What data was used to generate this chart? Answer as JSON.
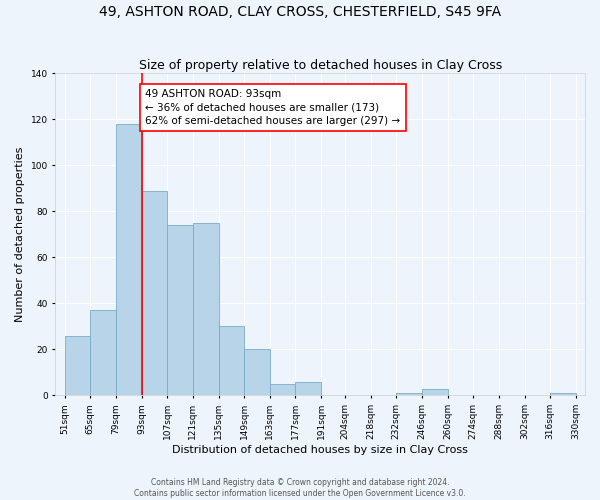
{
  "title": "49, ASHTON ROAD, CLAY CROSS, CHESTERFIELD, S45 9FA",
  "subtitle": "Size of property relative to detached houses in Clay Cross",
  "xlabel": "Distribution of detached houses by size in Clay Cross",
  "ylabel": "Number of detached properties",
  "footer_line1": "Contains HM Land Registry data © Crown copyright and database right 2024.",
  "footer_line2": "Contains public sector information licensed under the Open Government Licence v3.0.",
  "bar_color": "#b8d4e8",
  "bar_edgecolor": "#7aacc8",
  "background_color": "#eef4fb",
  "plot_bg_color": "#eef4fb",
  "grid_color": "#ffffff",
  "red_line_x": 93,
  "annotation_text": "49 ASHTON ROAD: 93sqm\n← 36% of detached houses are smaller (173)\n62% of semi-detached houses are larger (297) →",
  "bin_edges": [
    51,
    65,
    79,
    93,
    107,
    121,
    135,
    149,
    163,
    177,
    191,
    204,
    218,
    232,
    246,
    260,
    274,
    288,
    302,
    316,
    330
  ],
  "bar_heights": [
    26,
    37,
    118,
    89,
    74,
    75,
    30,
    20,
    5,
    6,
    0,
    0,
    0,
    1,
    3,
    0,
    0,
    0,
    0,
    1
  ],
  "ylim": [
    0,
    140
  ],
  "yticks": [
    0,
    20,
    40,
    60,
    80,
    100,
    120,
    140
  ],
  "title_fontsize": 10,
  "subtitle_fontsize": 9,
  "axis_label_fontsize": 8,
  "tick_fontsize": 6.5,
  "annotation_fontsize": 7.5,
  "footer_fontsize": 5.5
}
